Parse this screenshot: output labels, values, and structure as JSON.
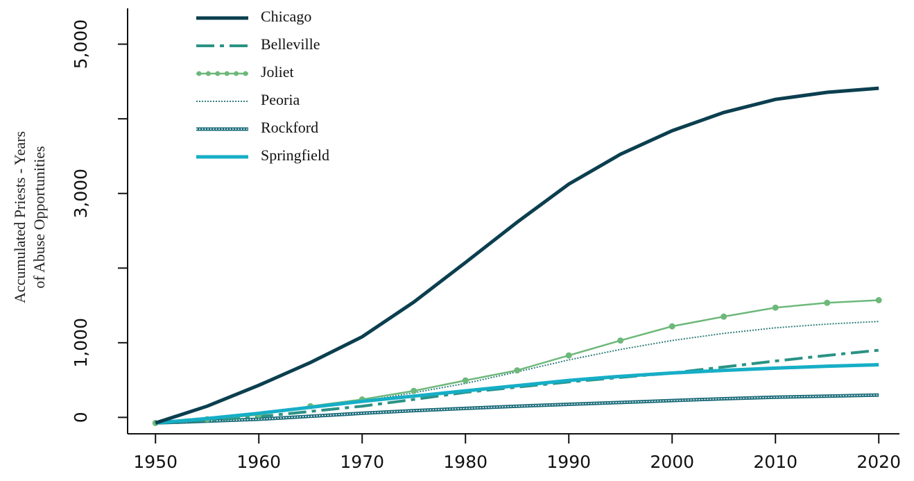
{
  "chart_data": {
    "type": "line",
    "y_label": [
      "Accumulated Priests - Years",
      "of Abuse Opportunities"
    ],
    "x": [
      1950,
      1955,
      1960,
      1965,
      1970,
      1975,
      1980,
      1985,
      1990,
      1995,
      2000,
      2005,
      2010,
      2015,
      2020
    ],
    "xlim": [
      1947.3,
      2022
    ],
    "xticks": [
      1950,
      1960,
      1970,
      1980,
      1990,
      2000,
      2010,
      2020
    ],
    "ylim": [
      -220,
      5480
    ],
    "yticks": [
      0,
      {
        "value": 1000,
        "label": "1,000"
      },
      {
        "value": 3000,
        "label": "3,000"
      },
      {
        "value": 5000,
        "label": "5,000"
      }
    ],
    "yminor_ticks": [
      2000,
      4000
    ],
    "series": [
      {
        "name": "Chicago",
        "color": "#0b3f4f",
        "style": "solid",
        "values": [
          -75,
          150,
          430,
          735,
          1080,
          1545,
          2075,
          2615,
          3125,
          3525,
          3840,
          4085,
          4260,
          4355,
          4410
        ]
      },
      {
        "name": "Belleville",
        "color": "#2a9285",
        "style": "dashdot",
        "values": [
          -75,
          -40,
          10,
          80,
          150,
          240,
          335,
          405,
          475,
          535,
          595,
          675,
          755,
          830,
          900
        ]
      },
      {
        "name": "Joliet",
        "color": "#6db87a",
        "style": "dots",
        "values": [
          -75,
          -25,
          35,
          150,
          240,
          355,
          495,
          630,
          830,
          1030,
          1220,
          1350,
          1470,
          1535,
          1570
        ]
      },
      {
        "name": "Peoria",
        "color": "#2e7d7a",
        "style": "dotted",
        "values": [
          -75,
          -20,
          40,
          125,
          215,
          330,
          455,
          610,
          770,
          910,
          1030,
          1125,
          1200,
          1250,
          1285
        ]
      },
      {
        "name": "Rockford",
        "color": "#1b6c7a",
        "style": "double",
        "values": [
          -75,
          -50,
          -25,
          15,
          55,
          90,
          120,
          150,
          175,
          200,
          225,
          250,
          270,
          285,
          300
        ]
      },
      {
        "name": "Springfield",
        "color": "#16aec6",
        "style": "solid",
        "values": [
          -75,
          -15,
          55,
          135,
          215,
          285,
          355,
          425,
          495,
          550,
          595,
          630,
          660,
          685,
          705
        ]
      }
    ]
  }
}
